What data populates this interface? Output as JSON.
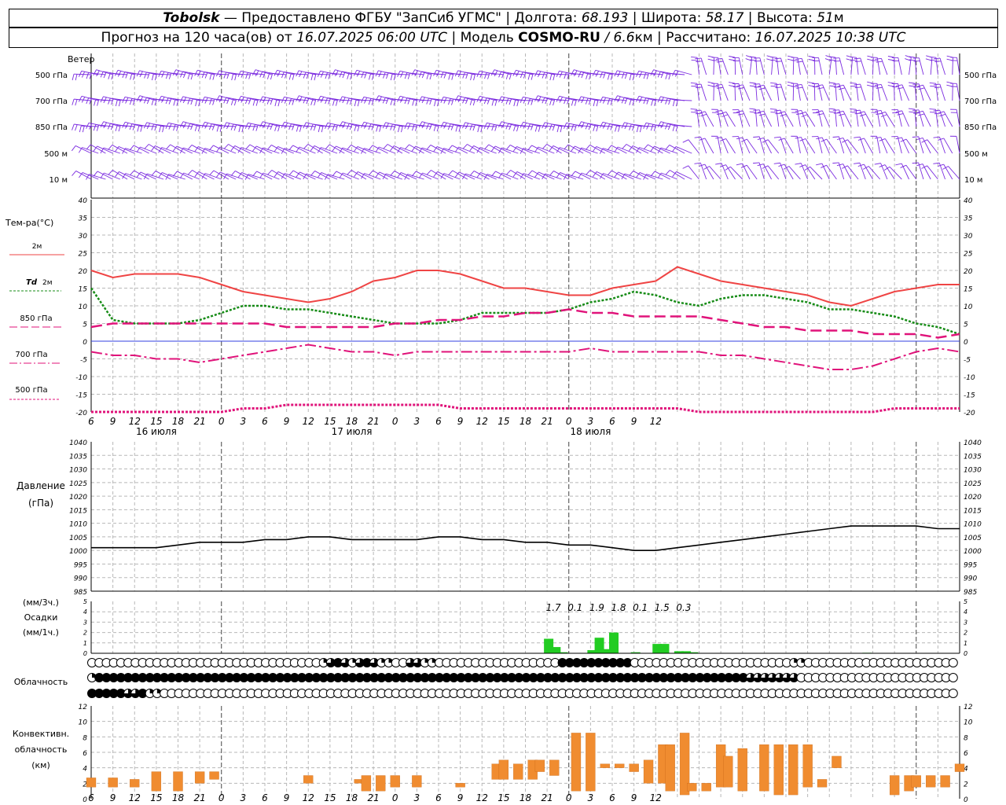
{
  "header": {
    "line1": {
      "station": "Tobolsk",
      "provider": " — Предоставлено ФГБУ \"ЗапСиб УГМС\" | Долгота: ",
      "lon": "68.193",
      "lat_label": " | Широта: ",
      "lat": "58.17",
      "alt_label": " | Высота: ",
      "alt": "51",
      "alt_unit": "м"
    },
    "line2": {
      "prefix": "Прогноз на 120 часа(ов) от ",
      "run": "16.07.2025 06:00 UTC",
      "model_label": " | Модель ",
      "model": "COSMO-RU",
      "res": " / 6.6",
      "res_unit": "км",
      "calc_label": " | Рассчитано: ",
      "calc": "16.07.2025 10:38 UTC"
    }
  },
  "time_axis": {
    "hours": [
      "6",
      "9",
      "12",
      "15",
      "18",
      "21",
      "0",
      "3",
      "6",
      "9",
      "12",
      "15",
      "18",
      "21",
      "0",
      "3",
      "6",
      "9",
      "12",
      "15",
      "18",
      "21",
      "0",
      "3",
      "6",
      "9",
      "12"
    ],
    "days": [
      "16 июля",
      "17 июля",
      "18 июля"
    ]
  },
  "wind_panel": {
    "title": "Ветер",
    "levels": [
      "500 гПа",
      "700 гПа",
      "850 гПа",
      "500 м",
      "10 м"
    ],
    "barb_color": "#7b2be0"
  },
  "temperature_panel": {
    "title": "Тем-ра(°С)",
    "legend": {
      "t2m": "2м",
      "td_sym": "Td",
      "td_2m": "2м",
      "t850": "850 гПа",
      "t700": "700 гПа",
      "t500": "500 гПа"
    },
    "colors": {
      "t2m": "#ef4444",
      "td": "#178c17",
      "t850": "#e0137a",
      "t700": "#e0137a",
      "t500": "#e0137a",
      "zero": "#3340e0"
    }
  },
  "pressure_panel": {
    "title": "Давление",
    "unit": "(гПа)"
  },
  "precip_panel": {
    "unit3h": "(мм/3ч.)",
    "title": "Осадки",
    "unit1h": "(мм/1ч.)",
    "totals": [
      "1.7",
      "0.1",
      "1.9",
      "1.8",
      "0.1",
      "1.5",
      "0.3"
    ],
    "bar_color": "#22cc22"
  },
  "cloud_panel": {
    "title": "Облачность"
  },
  "convective_panel": {
    "title1": "Конвективн.",
    "title2": "облачность",
    "unit": "(км)",
    "color": "#f08c30"
  },
  "chart_data": [
    {
      "type": "line",
      "name_key": "temperature",
      "x_hours": [
        0,
        3,
        6,
        9,
        12,
        15,
        18,
        21,
        24,
        27,
        30,
        33,
        36,
        39,
        42,
        45,
        48,
        51,
        54,
        57,
        60,
        63,
        66,
        69,
        72,
        75,
        78,
        81,
        84,
        87,
        90,
        93,
        96,
        99,
        102,
        105,
        108,
        111,
        114,
        117,
        120
      ],
      "ylim": [
        -20,
        40
      ],
      "yticks": [
        -20,
        -15,
        -10,
        -5,
        0,
        5,
        10,
        15,
        20,
        25,
        30,
        35,
        40
      ],
      "series": [
        {
          "key": "t2m",
          "values": [
            20,
            18,
            19,
            19,
            19,
            18,
            16,
            14,
            13,
            12,
            11,
            12,
            14,
            17,
            18,
            20,
            20,
            19,
            17,
            15,
            15,
            14,
            13,
            13,
            15,
            16,
            17,
            21,
            19,
            17,
            16,
            15,
            14,
            13,
            11,
            10,
            12,
            14,
            15,
            16,
            16
          ]
        },
        {
          "key": "td2m",
          "values": [
            15,
            6,
            5,
            5,
            5,
            6,
            8,
            10,
            10,
            9,
            9,
            8,
            7,
            6,
            5,
            5,
            5,
            6,
            8,
            8,
            8,
            8,
            9,
            11,
            12,
            14,
            13,
            11,
            10,
            12,
            13,
            13,
            12,
            11,
            9,
            9,
            8,
            7,
            5,
            4,
            2
          ]
        },
        {
          "key": "t850",
          "values": [
            4,
            5,
            5,
            5,
            5,
            5,
            5,
            5,
            5,
            4,
            4,
            4,
            4,
            4,
            5,
            5,
            6,
            6,
            7,
            7,
            8,
            8,
            9,
            8,
            8,
            7,
            7,
            7,
            7,
            6,
            5,
            4,
            4,
            3,
            3,
            3,
            2,
            2,
            2,
            1,
            2
          ]
        },
        {
          "key": "t700",
          "values": [
            -3,
            -4,
            -4,
            -5,
            -5,
            -6,
            -5,
            -4,
            -3,
            -2,
            -1,
            -2,
            -3,
            -3,
            -4,
            -3,
            -3,
            -3,
            -3,
            -3,
            -3,
            -3,
            -3,
            -2,
            -3,
            -3,
            -3,
            -3,
            -3,
            -4,
            -4,
            -5,
            -6,
            -7,
            -8,
            -8,
            -7,
            -5,
            -3,
            -2,
            -3
          ]
        },
        {
          "key": "t500",
          "values": [
            -22,
            -21,
            -20,
            -20,
            -21,
            -20,
            -20,
            -19,
            -19,
            -18,
            -18,
            -18,
            -18,
            -18,
            -18,
            -18,
            -18,
            -19,
            -19,
            -19,
            -19,
            -19,
            -19,
            -19,
            -19,
            -19,
            -19,
            -19,
            -20,
            -20,
            -21,
            -21,
            -21,
            -21,
            -21,
            -21,
            -20,
            -19,
            -19,
            -19,
            -19
          ]
        }
      ]
    },
    {
      "type": "line",
      "name_key": "pressure",
      "x_hours": [
        0,
        3,
        6,
        9,
        12,
        15,
        18,
        21,
        24,
        27,
        30,
        33,
        36,
        39,
        42,
        45,
        48,
        51,
        54,
        57,
        60,
        63,
        66,
        69,
        72,
        75,
        78,
        81,
        84,
        87,
        90,
        93,
        96,
        99,
        102,
        105,
        108,
        111,
        114,
        117,
        120
      ],
      "ylim": [
        985,
        1040
      ],
      "yticks": [
        985,
        990,
        995,
        1000,
        1005,
        1010,
        1015,
        1020,
        1025,
        1030,
        1035,
        1040
      ],
      "values": [
        1001,
        1001,
        1001,
        1001,
        1002,
        1003,
        1003,
        1003,
        1004,
        1004,
        1005,
        1005,
        1004,
        1004,
        1004,
        1004,
        1005,
        1005,
        1004,
        1004,
        1003,
        1003,
        1002,
        1002,
        1001,
        1000,
        1000,
        1001,
        1002,
        1003,
        1004,
        1005,
        1006,
        1007,
        1008,
        1009,
        1009,
        1009,
        1009,
        1008,
        1008
      ]
    },
    {
      "type": "bar",
      "name_key": "precipitation",
      "ylim": [
        0,
        5
      ],
      "yticks": [
        0,
        1,
        2,
        3,
        4,
        5
      ],
      "bars_1h": [
        {
          "hour": 63,
          "value": 1.4
        },
        {
          "hour": 64,
          "value": 0.6
        },
        {
          "hour": 65,
          "value": 0.1
        },
        {
          "hour": 69,
          "value": 0.3
        },
        {
          "hour": 70,
          "value": 1.5
        },
        {
          "hour": 71,
          "value": 0.4
        },
        {
          "hour": 72,
          "value": 2.0
        },
        {
          "hour": 75,
          "value": 0.1
        },
        {
          "hour": 78,
          "value": 0.9
        },
        {
          "hour": 79,
          "value": 0.9
        },
        {
          "hour": 81,
          "value": 0.2
        },
        {
          "hour": 82,
          "value": 0.2
        },
        {
          "hour": 83,
          "value": 0.1
        },
        {
          "hour": 107,
          "value": 0.05
        }
      ],
      "totals_3h_hours": [
        63,
        66,
        69,
        72,
        75,
        78,
        81
      ]
    },
    {
      "type": "bar",
      "name_key": "convective_cloud",
      "ylim": [
        0,
        12
      ],
      "yticks": [
        0,
        2,
        4,
        6,
        8,
        10,
        12
      ],
      "bars": [
        {
          "hour": 0,
          "base": 1.5,
          "top": 2.7
        },
        {
          "hour": 3,
          "base": 1.5,
          "top": 2.7
        },
        {
          "hour": 6,
          "base": 1.5,
          "top": 2.5
        },
        {
          "hour": 9,
          "base": 1.0,
          "top": 3.5
        },
        {
          "hour": 12,
          "base": 1.0,
          "top": 3.5
        },
        {
          "hour": 15,
          "base": 2.0,
          "top": 3.5
        },
        {
          "hour": 17,
          "base": 2.5,
          "top": 3.5
        },
        {
          "hour": 30,
          "base": 2.0,
          "top": 3.0
        },
        {
          "hour": 37,
          "base": 2.0,
          "top": 2.5
        },
        {
          "hour": 38,
          "base": 1.0,
          "top": 3.0
        },
        {
          "hour": 40,
          "base": 1.0,
          "top": 3.0
        },
        {
          "hour": 42,
          "base": 1.5,
          "top": 3.0
        },
        {
          "hour": 45,
          "base": 1.5,
          "top": 3.0
        },
        {
          "hour": 51,
          "base": 1.5,
          "top": 2.0
        },
        {
          "hour": 56,
          "base": 2.5,
          "top": 4.5
        },
        {
          "hour": 57,
          "base": 2.5,
          "top": 5.0
        },
        {
          "hour": 59,
          "base": 2.5,
          "top": 4.5
        },
        {
          "hour": 61,
          "base": 2.5,
          "top": 5.0
        },
        {
          "hour": 62,
          "base": 3.5,
          "top": 5.0
        },
        {
          "hour": 64,
          "base": 3.0,
          "top": 5.0
        },
        {
          "hour": 67,
          "base": 1.0,
          "top": 8.5
        },
        {
          "hour": 69,
          "base": 1.0,
          "top": 8.5
        },
        {
          "hour": 71,
          "base": 4.0,
          "top": 4.5
        },
        {
          "hour": 73,
          "base": 4.0,
          "top": 4.5
        },
        {
          "hour": 75,
          "base": 3.5,
          "top": 4.5
        },
        {
          "hour": 77,
          "base": 2.0,
          "top": 5.0
        },
        {
          "hour": 79,
          "base": 2.0,
          "top": 7.0
        },
        {
          "hour": 80,
          "base": 1.0,
          "top": 7.0
        },
        {
          "hour": 82,
          "base": 0.5,
          "top": 8.5
        },
        {
          "hour": 83,
          "base": 1.0,
          "top": 2.0
        },
        {
          "hour": 85,
          "base": 1.0,
          "top": 2.0
        },
        {
          "hour": 87,
          "base": 1.5,
          "top": 7.0
        },
        {
          "hour": 88,
          "base": 1.5,
          "top": 5.5
        },
        {
          "hour": 90,
          "base": 1.0,
          "top": 6.5
        },
        {
          "hour": 93,
          "base": 1.0,
          "top": 7.0
        },
        {
          "hour": 95,
          "base": 0.5,
          "top": 7.0
        },
        {
          "hour": 97,
          "base": 0.5,
          "top": 7.0
        },
        {
          "hour": 99,
          "base": 1.5,
          "top": 7.0
        },
        {
          "hour": 101,
          "base": 1.5,
          "top": 2.5
        },
        {
          "hour": 103,
          "base": 4.0,
          "top": 5.5
        },
        {
          "hour": 111,
          "base": 0.5,
          "top": 3.0
        },
        {
          "hour": 113,
          "base": 1.0,
          "top": 3.0
        },
        {
          "hour": 114,
          "base": 1.5,
          "top": 3.0
        },
        {
          "hour": 116,
          "base": 1.5,
          "top": 3.0
        },
        {
          "hour": 118,
          "base": 1.5,
          "top": 3.0
        },
        {
          "hour": 120,
          "base": 3.5,
          "top": 4.5
        }
      ]
    }
  ],
  "cloud_rows": {
    "low": "000000000000000000000000000000001232123211002211000000000000000003333333333000000000000000000000011000000000000000000000",
    "mid": "133333333333333333333333333333333333333333333333333333333333333333333333333333333333333333322222220000000000000000000000",
    "high": "333332231100000000000000000000000000000000000000000000000000000000000000000000000000000000000000000000000000000000000000"
  }
}
